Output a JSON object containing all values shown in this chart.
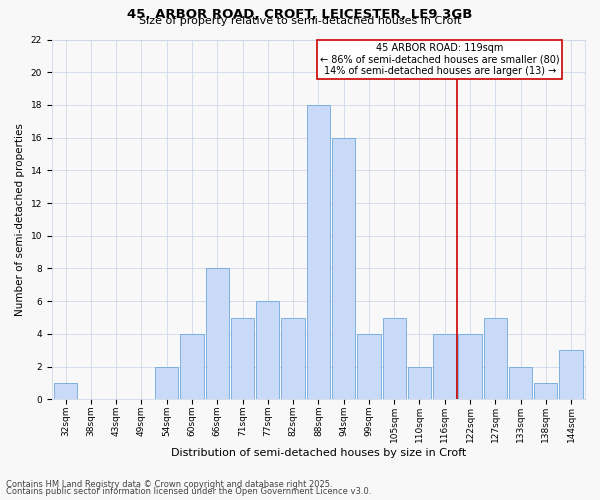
{
  "title": "45, ARBOR ROAD, CROFT, LEICESTER, LE9 3GB",
  "subtitle": "Size of property relative to semi-detached houses in Croft",
  "xlabel": "Distribution of semi-detached houses by size in Croft",
  "ylabel": "Number of semi-detached properties",
  "categories": [
    "32sqm",
    "38sqm",
    "43sqm",
    "49sqm",
    "54sqm",
    "60sqm",
    "66sqm",
    "71sqm",
    "77sqm",
    "82sqm",
    "88sqm",
    "94sqm",
    "99sqm",
    "105sqm",
    "110sqm",
    "116sqm",
    "122sqm",
    "127sqm",
    "133sqm",
    "138sqm",
    "144sqm"
  ],
  "values": [
    1,
    0,
    0,
    0,
    2,
    4,
    8,
    5,
    6,
    5,
    18,
    16,
    4,
    5,
    2,
    4,
    4,
    5,
    2,
    1,
    3
  ],
  "bar_color": "#c9daf8",
  "bar_edge_color": "#6fa8dc",
  "vline_color": "#cc0000",
  "annotation_title": "45 ARBOR ROAD: 119sqm",
  "annotation_line1": "← 86% of semi-detached houses are smaller (80)",
  "annotation_line2": "14% of semi-detached houses are larger (13) →",
  "annotation_box_color": "#cc0000",
  "ylim": [
    0,
    22
  ],
  "yticks": [
    0,
    2,
    4,
    6,
    8,
    10,
    12,
    14,
    16,
    18,
    20,
    22
  ],
  "footer1": "Contains HM Land Registry data © Crown copyright and database right 2025.",
  "footer2": "Contains public sector information licensed under the Open Government Licence v3.0.",
  "bg_color": "#f8f8f8",
  "grid_color": "#d0d8e8",
  "title_fontsize": 9.5,
  "subtitle_fontsize": 8,
  "ylabel_fontsize": 7.5,
  "xlabel_fontsize": 8,
  "tick_fontsize": 6.5,
  "annotation_fontsize": 7,
  "footer_fontsize": 6
}
